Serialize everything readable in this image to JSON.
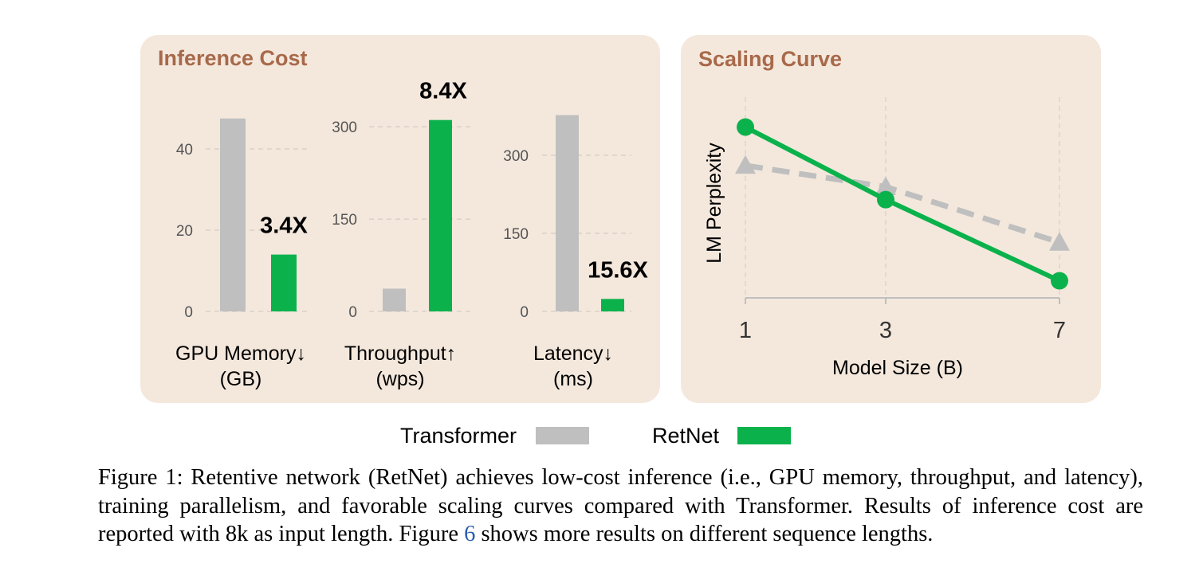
{
  "colors": {
    "panel_bg": "#f4e8dd",
    "title": "#a8694a",
    "transformer": "#bfbfbf",
    "retnet": "#0bb24c",
    "grid": "#d9d0c7",
    "axis": "#bfbfbf",
    "link": "#2a5db0"
  },
  "inference_panel": {
    "title": "Inference Cost"
  },
  "scaling_panel": {
    "title": "Scaling Curve"
  },
  "legend": {
    "items": [
      {
        "label": "Transformer",
        "color": "#bfbfbf"
      },
      {
        "label": "RetNet",
        "color": "#0bb24c"
      }
    ]
  },
  "chart_data": [
    {
      "type": "bar",
      "categories": [
        "GPU Memory↓\n(GB)"
      ],
      "series": [
        {
          "name": "Transformer",
          "values": [
            47.5
          ]
        },
        {
          "name": "RetNet",
          "values": [
            14
          ]
        }
      ],
      "yticks": [
        "0",
        "20",
        "40"
      ],
      "ylim": [
        0,
        50
      ],
      "annotation": "3.4X",
      "label_line1": "GPU Memory↓",
      "label_line2": "(GB)"
    },
    {
      "type": "bar",
      "categories": [
        "Throughput↑\n(wps)"
      ],
      "series": [
        {
          "name": "Transformer",
          "values": [
            37
          ]
        },
        {
          "name": "RetNet",
          "values": [
            311
          ]
        }
      ],
      "yticks": [
        "0",
        "150",
        "300"
      ],
      "ylim": [
        0,
        330
      ],
      "annotation": "8.4X",
      "label_line1": "Throughput↑",
      "label_line2": "(wps)"
    },
    {
      "type": "bar",
      "categories": [
        "Latency↓\n(ms)"
      ],
      "series": [
        {
          "name": "Transformer",
          "values": [
            377
          ]
        },
        {
          "name": "RetNet",
          "values": [
            24
          ]
        }
      ],
      "yticks": [
        "0",
        "150",
        "300"
      ],
      "ylim": [
        0,
        390
      ],
      "annotation": "15.6X",
      "label_line1": "Latency↓",
      "label_line2": "(ms)"
    },
    {
      "type": "line",
      "title": "Scaling Curve",
      "xlabel": "Model Size (B)",
      "ylabel": "LM Perplexity",
      "x": [
        "1",
        "3",
        "7"
      ],
      "series": [
        {
          "name": "RetNet",
          "values": [
            9.9,
            8.2,
            6.3
          ],
          "style": "solid",
          "marker": "circle"
        },
        {
          "name": "Transformer",
          "values": [
            9.0,
            8.5,
            7.2
          ],
          "style": "dashed",
          "marker": "triangle"
        }
      ],
      "ylim": [
        5.9,
        10.6
      ],
      "grid": true
    }
  ],
  "caption": {
    "before_link": "Figure 1: Retentive network (RetNet) achieves low-cost inference (i.e., GPU memory, throughput, and latency), training parallelism, and favorable scaling curves compared with Transformer. Results of inference cost are reported with 8k as input length.  Figure ",
    "link_text": "6",
    "after_link": " shows more results on different sequence lengths."
  }
}
